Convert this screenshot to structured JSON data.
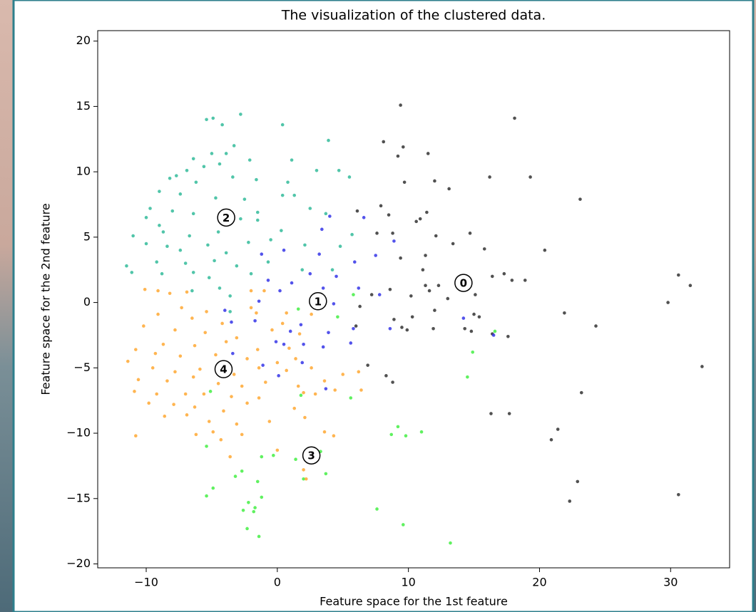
{
  "chart_data": {
    "type": "scatter",
    "title": "The visualization of the clustered data.",
    "x_label": "Feature space for the 1st feature",
    "y_label": "Feature space for the 2nd feature",
    "xlim": [
      -13.7,
      34.5
    ],
    "ylim": [
      -20.3,
      20.8
    ],
    "xticks": [
      {
        "value": -10,
        "label": "−10"
      },
      0,
      10,
      20,
      30
    ],
    "yticks": [
      {
        "value": -20,
        "label": "−20"
      },
      {
        "value": -15,
        "label": "−15"
      },
      {
        "value": -10,
        "label": "−10"
      },
      {
        "value": -5,
        "label": "−5"
      },
      0,
      5,
      10,
      15,
      20
    ],
    "grid": false,
    "series": [
      {
        "name": "0",
        "color": "#333333",
        "centroid": [
          14.2,
          1.5
        ],
        "x": [
          9.4,
          8.1,
          9.6,
          11.5,
          9.2,
          18.1,
          16.2,
          19.3,
          12.0,
          13.1,
          9.7,
          23.1,
          6.1,
          7.9,
          10.9,
          11.4,
          8.5,
          10.6,
          7.6,
          8.8,
          12.1,
          14.7,
          15.8,
          20.4,
          13.4,
          11.3,
          9.4,
          11.1,
          16.4,
          17.3,
          18.9,
          17.9,
          11.3,
          11.6,
          12.3,
          15.1,
          10.2,
          7.2,
          6.3,
          8.6,
          13.0,
          29.8,
          30.6,
          31.5,
          21.9,
          24.3,
          12.0,
          15.4,
          15.0,
          10.3,
          8.9,
          9.5,
          9.9,
          11.9,
          14.3,
          14.8,
          16.4,
          17.6,
          6.0,
          6.9,
          8.3,
          8.8,
          32.4,
          23.2,
          16.3,
          17.7,
          21.4,
          20.9,
          22.9,
          22.3,
          30.6
        ],
        "values": [
          15.1,
          12.3,
          11.9,
          11.4,
          11.2,
          14.1,
          9.6,
          9.6,
          9.3,
          8.7,
          9.2,
          7.9,
          7.0,
          7.4,
          6.4,
          6.9,
          6.7,
          6.2,
          5.3,
          5.3,
          5.1,
          5.3,
          4.1,
          4.0,
          4.5,
          3.6,
          3.4,
          2.5,
          2.0,
          2.2,
          1.7,
          1.7,
          1.3,
          0.9,
          1.3,
          0.6,
          0.5,
          0.6,
          -0.3,
          1.0,
          0.3,
          0.0,
          2.1,
          1.3,
          -0.8,
          -1.8,
          -0.6,
          -1.1,
          -0.9,
          -1.1,
          -1.3,
          -1.9,
          -2.1,
          -2.0,
          -2.0,
          -2.2,
          -2.4,
          -2.6,
          -1.8,
          -4.8,
          -5.6,
          -6.1,
          -4.9,
          -6.9,
          -8.5,
          -8.5,
          -9.7,
          -10.5,
          -13.7,
          -15.2,
          -14.7
        ]
      },
      {
        "name": "1",
        "color": "#3535e8",
        "centroid": [
          3.1,
          0.1
        ],
        "x": [
          4.0,
          6.6,
          3.4,
          0.5,
          -1.2,
          3.2,
          5.9,
          7.5,
          8.9,
          2.5,
          4.5,
          1.1,
          -0.7,
          3.5,
          6.2,
          0.2,
          2.8,
          -1.4,
          7.8,
          4.3,
          -4.0,
          -1.7,
          -3.5,
          1.8,
          5.8,
          1.0,
          3.9,
          8.6,
          14.2,
          16.5,
          -0.1,
          2.0,
          3.5,
          5.6,
          -3.4,
          0.5,
          1.9,
          -1.1,
          0.1,
          3.7
        ],
        "values": [
          6.6,
          6.5,
          5.6,
          4.0,
          3.7,
          3.7,
          3.1,
          3.6,
          4.7,
          2.2,
          2.0,
          1.5,
          1.7,
          1.1,
          1.1,
          0.9,
          0.1,
          0.1,
          0.6,
          -0.1,
          -0.6,
          -1.4,
          -1.5,
          -1.7,
          -2.0,
          -2.2,
          -2.3,
          -2.0,
          -1.2,
          -2.5,
          -3.0,
          -3.2,
          -3.4,
          -3.1,
          -3.9,
          -3.2,
          -4.6,
          -4.8,
          -5.6,
          -6.6
        ]
      },
      {
        "name": "2",
        "color": "#33bb9a",
        "centroid": [
          -3.9,
          6.5
        ],
        "x": [
          -5.4,
          -4.9,
          -4.2,
          -2.8,
          0.4,
          3.9,
          -3.3,
          -3.9,
          -5.0,
          -6.4,
          -7.7,
          -6.9,
          -4.4,
          -5.6,
          -2.1,
          1.1,
          -8.2,
          -6.2,
          -3.4,
          -1.6,
          0.8,
          3.0,
          4.7,
          5.5,
          -9.0,
          -7.4,
          -4.7,
          -2.5,
          0.4,
          1.3,
          -9.7,
          -8.0,
          -6.4,
          -2.8,
          -1.5,
          2.5,
          3.7,
          -10.0,
          -9.0,
          -8.7,
          -6.7,
          -4.5,
          -1.5,
          0.3,
          5.7,
          -11.0,
          -10.0,
          -8.4,
          -7.4,
          -5.3,
          -3.9,
          -2.2,
          -0.5,
          2.1,
          4.8,
          -9.2,
          -7.0,
          -4.8,
          -3.1,
          -0.7,
          -11.5,
          -11.1,
          -8.8,
          -6.4,
          -5.2,
          -2.0,
          1.9,
          4.2,
          -4.4,
          -3.6,
          -6.5,
          -3.6
        ],
        "values": [
          14.0,
          14.1,
          13.6,
          14.4,
          13.6,
          12.4,
          12.0,
          11.4,
          11.4,
          11.0,
          9.7,
          10.1,
          10.6,
          10.4,
          10.9,
          10.9,
          9.5,
          9.2,
          9.6,
          9.4,
          9.2,
          10.1,
          10.1,
          9.6,
          8.5,
          8.3,
          8.0,
          7.9,
          8.2,
          8.2,
          7.2,
          7.0,
          6.8,
          6.4,
          6.9,
          7.2,
          6.8,
          6.5,
          5.9,
          5.4,
          5.1,
          5.4,
          6.3,
          5.5,
          5.2,
          5.1,
          4.5,
          4.3,
          4.0,
          4.4,
          3.8,
          4.6,
          4.8,
          4.4,
          4.3,
          3.1,
          3.0,
          3.2,
          2.8,
          3.1,
          2.8,
          2.3,
          2.2,
          2.3,
          1.9,
          2.2,
          2.5,
          2.5,
          1.1,
          0.5,
          0.9,
          -0.7
        ]
      },
      {
        "name": "3",
        "color": "#44ee44",
        "centroid": [
          2.6,
          -11.7
        ],
        "x": [
          5.8,
          4.6,
          1.6,
          16.6,
          14.9,
          14.5,
          5.6,
          9.2,
          8.7,
          9.8,
          11.0,
          -5.4,
          -1.2,
          -0.3,
          3.3,
          1.4,
          3.7,
          2.0,
          -3.2,
          -2.7,
          -4.9,
          -5.4,
          -1.5,
          -1.2,
          -2.2,
          -2.6,
          -1.7,
          -1.8,
          -2.3,
          -1.4,
          7.6,
          9.6,
          13.2,
          -5.1,
          1.8
        ],
        "values": [
          0.6,
          -1.1,
          -0.5,
          -2.2,
          -3.8,
          -5.7,
          -7.3,
          -9.5,
          -10.1,
          -10.2,
          -9.9,
          -11.0,
          -11.8,
          -11.7,
          -11.4,
          -12.0,
          -13.1,
          -13.5,
          -13.3,
          -12.9,
          -14.2,
          -14.8,
          -13.7,
          -14.9,
          -15.3,
          -15.9,
          -15.7,
          -16.0,
          -17.3,
          -17.9,
          -15.8,
          -17.0,
          -18.4,
          -6.8,
          -7.1
        ]
      },
      {
        "name": "4",
        "color": "#ffa833",
        "centroid": [
          -4.1,
          -5.1
        ],
        "x": [
          -10.1,
          -9.1,
          -8.2,
          -6.9,
          -2.0,
          -1.0,
          -7.3,
          -5.4,
          -2.0,
          0.7,
          2.6,
          -9.1,
          -6.5,
          -4.2,
          -1.6,
          0.4,
          -10.2,
          -7.8,
          -5.5,
          -3.1,
          -0.4,
          1.7,
          -8.7,
          -6.3,
          -3.9,
          -1.5,
          0.9,
          -10.8,
          -9.3,
          -7.4,
          -4.7,
          -2.3,
          0.0,
          1.4,
          -11.4,
          -9.5,
          -7.8,
          -5.9,
          -3.3,
          -1.4,
          0.7,
          2.6,
          5.0,
          -10.6,
          -8.4,
          -6.4,
          -4.5,
          -2.7,
          -0.9,
          1.6,
          3.6,
          6.2,
          6.4,
          -10.9,
          -9.2,
          -7.0,
          -5.6,
          -3.5,
          -1.4,
          2.0,
          2.9,
          4.4,
          -9.8,
          -7.9,
          -6.3,
          -4.1,
          -2.3,
          1.3,
          -8.6,
          -6.9,
          -5.2,
          -3.1,
          -0.6,
          2.1,
          -10.8,
          -6.2,
          -4.3,
          -2.7,
          -3.6,
          3.6,
          4.3,
          0.0,
          2.0,
          2.2,
          -4.9
        ],
        "values": [
          1.0,
          0.9,
          0.7,
          0.8,
          0.9,
          0.9,
          -0.4,
          -0.7,
          -0.4,
          -0.8,
          -0.9,
          -0.9,
          -1.2,
          -1.6,
          -0.8,
          -1.6,
          -1.8,
          -2.1,
          -2.3,
          -2.7,
          -2.1,
          -2.4,
          -3.2,
          -3.3,
          -3.0,
          -3.6,
          -3.5,
          -3.6,
          -3.9,
          -4.1,
          -4.0,
          -4.3,
          -4.6,
          -4.3,
          -4.5,
          -5.0,
          -5.3,
          -5.1,
          -5.5,
          -5.0,
          -5.2,
          -5.0,
          -5.5,
          -5.9,
          -6.0,
          -5.7,
          -6.2,
          -6.4,
          -6.1,
          -6.4,
          -6.0,
          -5.3,
          -6.7,
          -6.8,
          -7.0,
          -7.0,
          -7.0,
          -7.2,
          -7.3,
          -6.9,
          -7.0,
          -6.7,
          -7.7,
          -7.8,
          -8.0,
          -8.3,
          -7.7,
          -8.1,
          -8.7,
          -8.6,
          -9.1,
          -9.3,
          -9.1,
          -8.8,
          -10.2,
          -10.1,
          -10.5,
          -10.1,
          -11.8,
          -9.9,
          -10.2,
          -11.3,
          -12.8,
          -13.5,
          -9.9
        ]
      }
    ]
  }
}
